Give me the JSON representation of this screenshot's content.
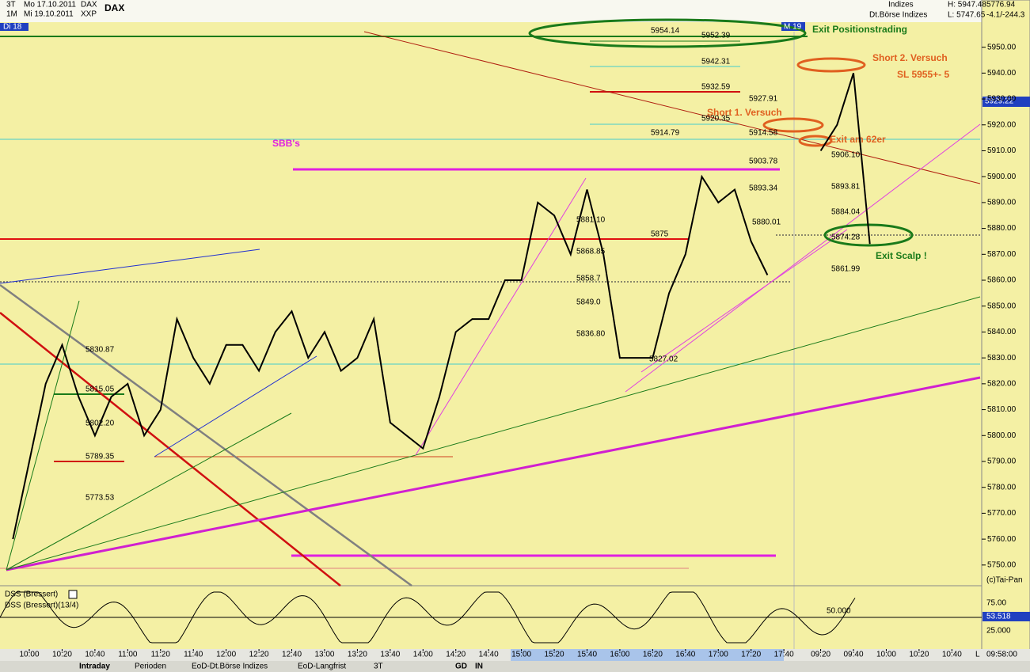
{
  "header": {
    "left": [
      "3T",
      "Mo 17.10.2011",
      "DAX",
      "1M",
      "Mi 19.10.2011",
      "XXP"
    ],
    "symbol": "DAX",
    "day_tag": "Di 18",
    "session_tag": "M 19",
    "right": [
      "Indizes",
      "Dt.Börse Indizes",
      "H: 5947.48",
      "L: 5747.65",
      "5776.94",
      "-4.1/-244.3"
    ]
  },
  "chart": {
    "type": "line",
    "categories": [
      null,
      "10:00",
      null,
      "10:20",
      null,
      "10:40",
      null,
      "11:00",
      null,
      "11:20",
      null,
      "11:40",
      null,
      "12:00",
      null,
      "12:20",
      null,
      "12:40",
      null,
      "13:00",
      null,
      "13:20",
      null,
      "13:40",
      null,
      "14:00",
      null,
      "14:20",
      null,
      "14:40",
      null,
      "15:00",
      null,
      "15:20",
      null,
      "15:40",
      null,
      "16:00",
      null,
      "16:20",
      null,
      "16:40",
      null,
      "17:00",
      null,
      "17:20",
      null,
      "17:40",
      null,
      "09:20",
      null,
      "09:40",
      null,
      "10:00",
      null,
      "10:20",
      null,
      "10:40",
      null
    ],
    "values": [
      5760,
      5790,
      5820,
      5835,
      5815,
      5800,
      5815,
      5820,
      5800,
      5810,
      5845,
      5830,
      5820,
      5835,
      5835,
      5825,
      5840,
      5848,
      5830,
      5840,
      5825,
      5830,
      5845,
      5805,
      5800,
      5795,
      5815,
      5840,
      5845,
      5845,
      5860,
      5860,
      5890,
      5885,
      5870,
      5895,
      5870,
      5830,
      5830,
      5830,
      5855,
      5870,
      5900,
      5890,
      5895,
      5875,
      5862,
      null,
      null,
      5910,
      5920,
      5940,
      5874,
      null,
      null,
      null,
      null,
      null,
      null
    ],
    "ylim": [
      5742,
      5956
    ],
    "yticks": [
      {
        "value": 5950,
        "label": "5950.00"
      },
      {
        "value": 5940,
        "label": "5940.00"
      },
      {
        "value": 5930,
        "label": "5930.00"
      },
      {
        "value": 5920,
        "label": "5920.00"
      },
      {
        "value": 5910,
        "label": "5910.00"
      },
      {
        "value": 5900,
        "label": "5900.00"
      },
      {
        "value": 5890,
        "label": "5890.00"
      },
      {
        "value": 5880,
        "label": "5880.00"
      },
      {
        "value": 5870,
        "label": "5870.00"
      },
      {
        "value": 5860,
        "label": "5860.00"
      },
      {
        "value": 5850,
        "label": "5850.00"
      },
      {
        "value": 5840,
        "label": "5840.00"
      },
      {
        "value": 5830,
        "label": "5830.00"
      },
      {
        "value": 5820,
        "label": "5820.00"
      },
      {
        "value": 5810,
        "label": "5810.00"
      },
      {
        "value": 5800,
        "label": "5800.00"
      },
      {
        "value": 5790,
        "label": "5790.00"
      },
      {
        "value": 5780,
        "label": "5780.00"
      },
      {
        "value": 5770,
        "label": "5770.00"
      },
      {
        "value": 5760,
        "label": "5760.00"
      },
      {
        "value": 5750,
        "label": "5750.00"
      }
    ],
    "last_price": "5929.22",
    "level_labels": [
      "5954.14",
      "5952.39",
      "5942.31",
      "5932.59",
      "5927.91",
      "5920.35",
      "5914.79",
      "5914.58",
      "5906.10",
      "5903.78",
      "5893.34",
      "5893.81",
      "5884.04",
      "5880.01",
      "5875",
      "5874.28",
      "5881.10",
      "5868.85",
      "5858.7",
      "5861.99",
      "5849.0",
      "5836.80",
      "5827.02",
      "5830.87",
      "5815.05",
      "5802.20",
      "5789.35",
      "5773.53"
    ],
    "annotations": {
      "exit_pos": "Exit Positionstrading",
      "short2": "Short 2. Versuch",
      "sl": "SL 5955+- 5",
      "short1": "Short 1. Versuch",
      "exit62": "Exit am 62er",
      "exit_scalp": "Exit Scalp !",
      "sbb": "SBB's"
    }
  },
  "oscillator": {
    "name": "DSS (Bressert)",
    "params": "DSS (Bressert)(13/4)",
    "labels": [
      "75.00",
      "25.000"
    ],
    "mid": "50.000",
    "last": "53.518",
    "copyright": "(c)Tai-Pan"
  },
  "footer": {
    "time": "09:58:00",
    "scale": "L",
    "tabs": [
      "Intraday",
      "Perioden",
      "EoD-Dt.Börse Indizes",
      "EoD-Langfrist"
    ],
    "period": "3T",
    "buttons": [
      "GD",
      "IN"
    ]
  }
}
